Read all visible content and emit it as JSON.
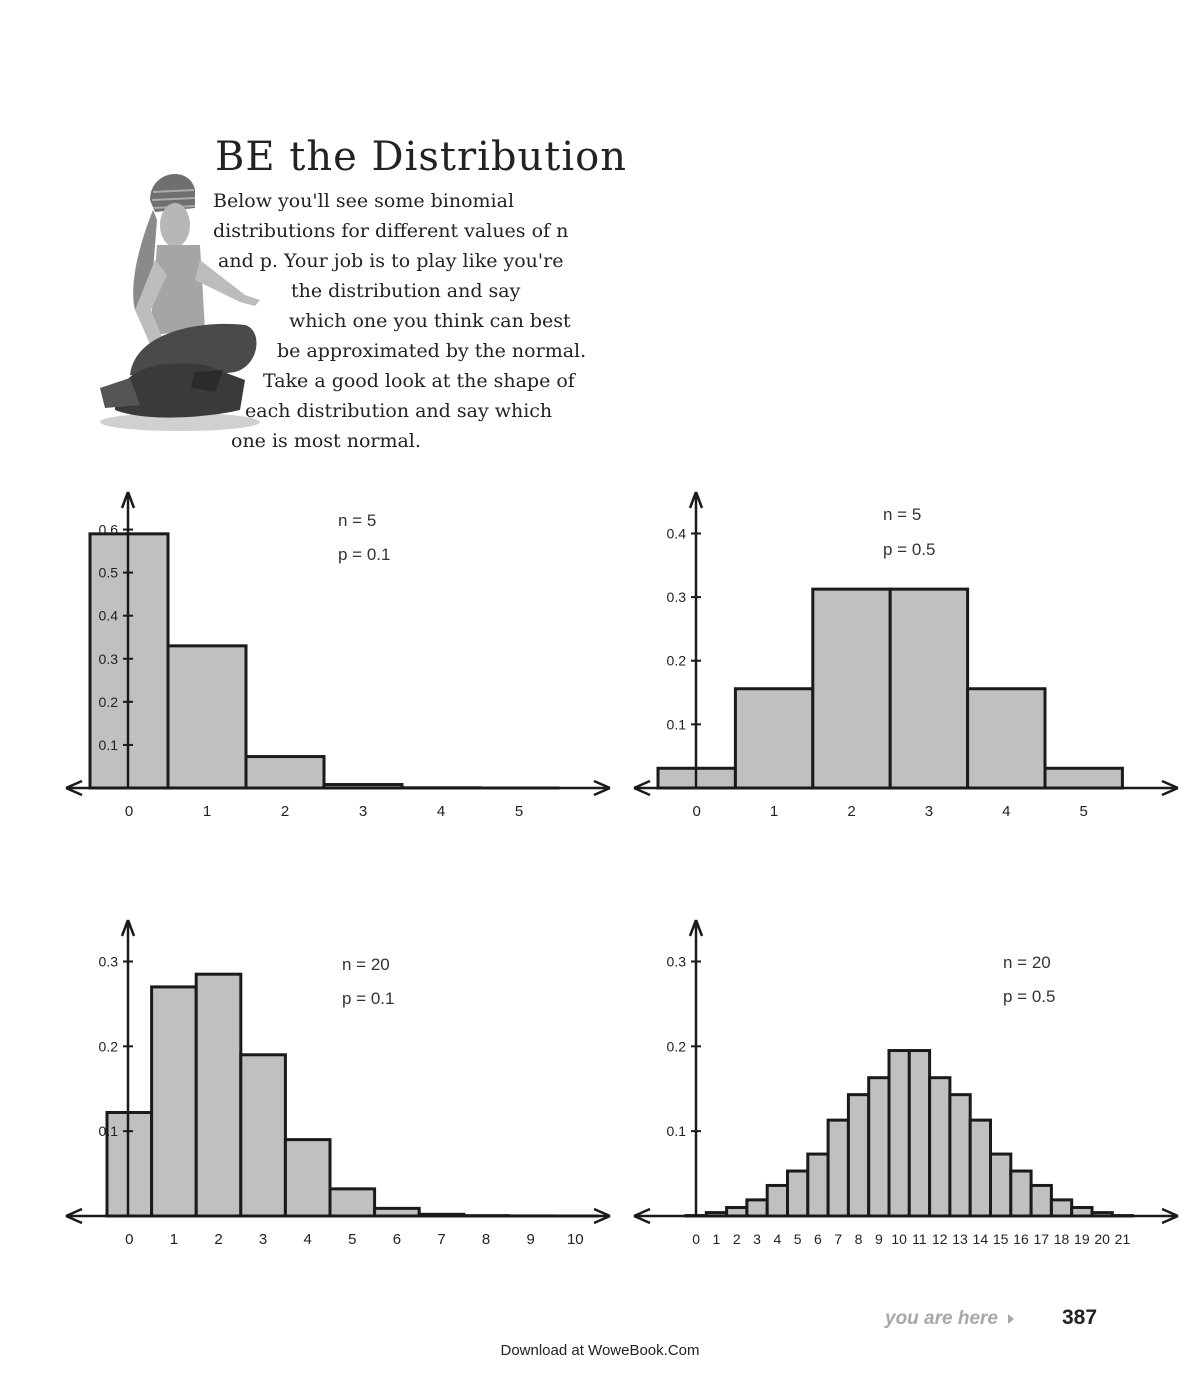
{
  "title": "BE the Distribution",
  "intro_lines": [
    "Below you'll see some binomial",
    "distributions for different values of n",
    "and p. Your job is to play like you're",
    "the distribution and say",
    "which one you think can best",
    "be approximated by the normal.",
    "Take a good look at the shape of",
    "each distribution and say which",
    "one is most normal."
  ],
  "footer": {
    "here": "you are here",
    "page_number": "387",
    "download": "Download at WoweBook.Com"
  },
  "colors": {
    "bar_fill": "#c0c0c0",
    "stroke": "#1a1a1a",
    "text": "#222222",
    "footer_gray": "#a8a8a8"
  },
  "chart_data": [
    {
      "type": "bar",
      "annotations": [
        "n = 5",
        "p = 0.1"
      ],
      "categories": [
        "0",
        "1",
        "2",
        "3",
        "4",
        "5"
      ],
      "values": [
        0.59,
        0.33,
        0.073,
        0.008,
        0.0005,
        1e-05
      ],
      "y_ticks": [
        "0.1",
        "0.2",
        "0.3",
        "0.4",
        "0.5",
        "0.6"
      ],
      "y_tick_values": [
        0.1,
        0.2,
        0.3,
        0.4,
        0.5,
        0.6
      ],
      "ylim": [
        0,
        0.65
      ],
      "grid": false
    },
    {
      "type": "bar",
      "annotations": [
        "n = 5",
        "p = 0.5"
      ],
      "categories": [
        "0",
        "1",
        "2",
        "3",
        "4",
        "5"
      ],
      "values": [
        0.031,
        0.156,
        0.3125,
        0.3125,
        0.156,
        0.031
      ],
      "y_ticks": [
        "0.1",
        "0.2",
        "0.3",
        "0.4"
      ],
      "y_tick_values": [
        0.1,
        0.2,
        0.3,
        0.4
      ],
      "ylim": [
        0,
        0.44
      ],
      "grid": false
    },
    {
      "type": "bar",
      "annotations": [
        "n = 20",
        "p = 0.1"
      ],
      "categories": [
        "0",
        "1",
        "2",
        "3",
        "4",
        "5",
        "6",
        "7",
        "8",
        "9",
        "10"
      ],
      "values": [
        0.122,
        0.27,
        0.285,
        0.19,
        0.09,
        0.032,
        0.009,
        0.002,
        0.0004,
        0.0001,
        1e-05
      ],
      "y_ticks": [
        "0.1",
        "0.2",
        "0.3"
      ],
      "y_tick_values": [
        0.1,
        0.2,
        0.3
      ],
      "ylim": [
        0,
        0.33
      ],
      "grid": false
    },
    {
      "type": "bar",
      "annotations": [
        "n = 20",
        "p = 0.5"
      ],
      "categories": [
        "0",
        "1",
        "2",
        "3",
        "4",
        "5",
        "6",
        "7",
        "8",
        "9",
        "10",
        "11",
        "12",
        "13",
        "14",
        "15",
        "16",
        "17",
        "18",
        "19",
        "20",
        "21"
      ],
      "values": [
        0.0005,
        0.004,
        0.01,
        0.019,
        0.036,
        0.053,
        0.073,
        0.113,
        0.143,
        0.163,
        0.195,
        0.195,
        0.163,
        0.143,
        0.113,
        0.073,
        0.053,
        0.036,
        0.019,
        0.01,
        0.004,
        0.0005
      ],
      "y_ticks": [
        "0.1",
        "0.2",
        "0.3"
      ],
      "y_tick_values": [
        0.1,
        0.2,
        0.3
      ],
      "ylim": [
        0,
        0.33
      ],
      "grid": false
    }
  ]
}
